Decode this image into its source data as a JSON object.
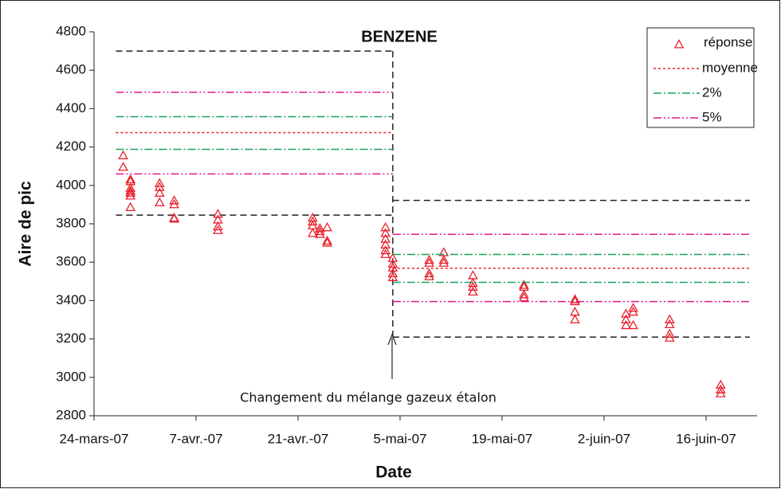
{
  "chart_data": {
    "type": "scatter",
    "title": "BENZENE",
    "x_label": "Date",
    "y_label": "Aire de pic",
    "annotation": "Changement du mélange gazeux étalon",
    "xlim": [
      "2007-03-24",
      "2007-06-23"
    ],
    "xticks": [
      {
        "value": "2007-03-24",
        "label": "24-mars-07"
      },
      {
        "value": "2007-04-07",
        "label": "7-avr.-07"
      },
      {
        "value": "2007-04-21",
        "label": "21-avr.-07"
      },
      {
        "value": "2007-05-05",
        "label": "5-mai-07"
      },
      {
        "value": "2007-05-19",
        "label": "19-mai-07"
      },
      {
        "value": "2007-06-02",
        "label": "2-juin-07"
      },
      {
        "value": "2007-06-16",
        "label": "16-juin-07"
      }
    ],
    "ylim": [
      2800,
      4800
    ],
    "yticks": [
      2800,
      3000,
      3200,
      3400,
      3600,
      3800,
      4000,
      4200,
      4400,
      4600,
      4800
    ],
    "series": [
      {
        "name": "réponse",
        "color": "#e8202a",
        "marker": "triangle",
        "x": [
          "2007-03-28",
          "2007-03-28",
          "2007-03-29",
          "2007-03-29",
          "2007-03-29",
          "2007-03-29",
          "2007-03-29",
          "2007-03-29",
          "2007-03-29",
          "2007-04-02",
          "2007-04-02",
          "2007-04-02",
          "2007-04-02",
          "2007-04-04",
          "2007-04-04",
          "2007-04-04",
          "2007-04-04",
          "2007-04-10",
          "2007-04-10",
          "2007-04-10",
          "2007-04-10",
          "2007-04-23",
          "2007-04-23",
          "2007-04-23",
          "2007-04-23",
          "2007-04-24",
          "2007-04-24",
          "2007-04-24",
          "2007-04-25",
          "2007-04-25",
          "2007-04-25",
          "2007-05-03",
          "2007-05-03",
          "2007-05-03",
          "2007-05-03",
          "2007-05-03",
          "2007-05-03",
          "2007-05-04",
          "2007-05-04",
          "2007-05-04",
          "2007-05-04",
          "2007-05-04",
          "2007-05-09",
          "2007-05-09",
          "2007-05-09",
          "2007-05-09",
          "2007-05-11",
          "2007-05-11",
          "2007-05-11",
          "2007-05-15",
          "2007-05-15",
          "2007-05-15",
          "2007-05-15",
          "2007-05-22",
          "2007-05-22",
          "2007-05-22",
          "2007-05-22",
          "2007-05-29",
          "2007-05-29",
          "2007-05-29",
          "2007-05-29",
          "2007-06-05",
          "2007-06-05",
          "2007-06-05",
          "2007-06-06",
          "2007-06-06",
          "2007-06-06",
          "2007-06-11",
          "2007-06-11",
          "2007-06-11",
          "2007-06-11",
          "2007-06-18",
          "2007-06-18",
          "2007-06-18"
        ],
        "values": [
          4155,
          4095,
          4030,
          4020,
          3985,
          3970,
          3960,
          3945,
          3885,
          4010,
          3990,
          3960,
          3910,
          3920,
          3900,
          3830,
          3825,
          3850,
          3820,
          3785,
          3765,
          3830,
          3810,
          3790,
          3750,
          3775,
          3760,
          3745,
          3780,
          3710,
          3700,
          3780,
          3750,
          3720,
          3690,
          3660,
          3640,
          3620,
          3590,
          3570,
          3540,
          3520,
          3610,
          3595,
          3540,
          3525,
          3650,
          3610,
          3595,
          3530,
          3490,
          3470,
          3445,
          3480,
          3470,
          3430,
          3415,
          3405,
          3395,
          3340,
          3300,
          3330,
          3300,
          3270,
          3360,
          3340,
          3270,
          3300,
          3275,
          3225,
          3205,
          2960,
          2935,
          2915
        ]
      },
      {
        "name": "moyenne",
        "color": "#e8202a",
        "dash": "3,3",
        "segments": [
          {
            "x": [
              "2007-03-27",
              "2007-05-04"
            ],
            "values": [
              4275,
              4275
            ]
          },
          {
            "x": [
              "2007-05-04",
              "2007-06-22"
            ],
            "values": [
              3568,
              3568
            ]
          }
        ]
      },
      {
        "name": "2%",
        "color": "#1aa05a",
        "dash": "10,3,2,3",
        "segments": [
          {
            "x": [
              "2007-03-27",
              "2007-05-04"
            ],
            "values": [
              4358,
              4358
            ]
          },
          {
            "x": [
              "2007-03-27",
              "2007-05-04"
            ],
            "values": [
              4188,
              4188
            ]
          },
          {
            "x": [
              "2007-05-04",
              "2007-06-22"
            ],
            "values": [
              3640,
              3640
            ]
          },
          {
            "x": [
              "2007-05-04",
              "2007-06-22"
            ],
            "values": [
              3495,
              3495
            ]
          }
        ]
      },
      {
        "name": "5%",
        "color": "#e0158a",
        "dash": "10,3,2,3,2,3",
        "segments": [
          {
            "x": [
              "2007-03-27",
              "2007-05-04"
            ],
            "values": [
              4485,
              4485
            ]
          },
          {
            "x": [
              "2007-03-27",
              "2007-05-04"
            ],
            "values": [
              4060,
              4060
            ]
          },
          {
            "x": [
              "2007-05-04",
              "2007-06-22"
            ],
            "values": [
              3745,
              3745
            ]
          },
          {
            "x": [
              "2007-05-04",
              "2007-06-22"
            ],
            "values": [
              3395,
              3395
            ]
          }
        ]
      }
    ],
    "bounds": {
      "color": "#222222",
      "dash": "8,5",
      "segments": [
        {
          "x": [
            "2007-03-27",
            "2007-05-04"
          ],
          "values": [
            4700,
            4700
          ]
        },
        {
          "x": [
            "2007-03-27",
            "2007-05-04"
          ],
          "values": [
            3845,
            3845
          ]
        },
        {
          "x": [
            "2007-05-04",
            "2007-06-22"
          ],
          "values": [
            3922,
            3922
          ]
        },
        {
          "x": [
            "2007-05-04",
            "2007-06-22"
          ],
          "values": [
            3210,
            3210
          ]
        },
        {
          "x": [
            "2007-05-04",
            "2007-05-04"
          ],
          "values": [
            4700,
            3210
          ]
        }
      ]
    }
  }
}
